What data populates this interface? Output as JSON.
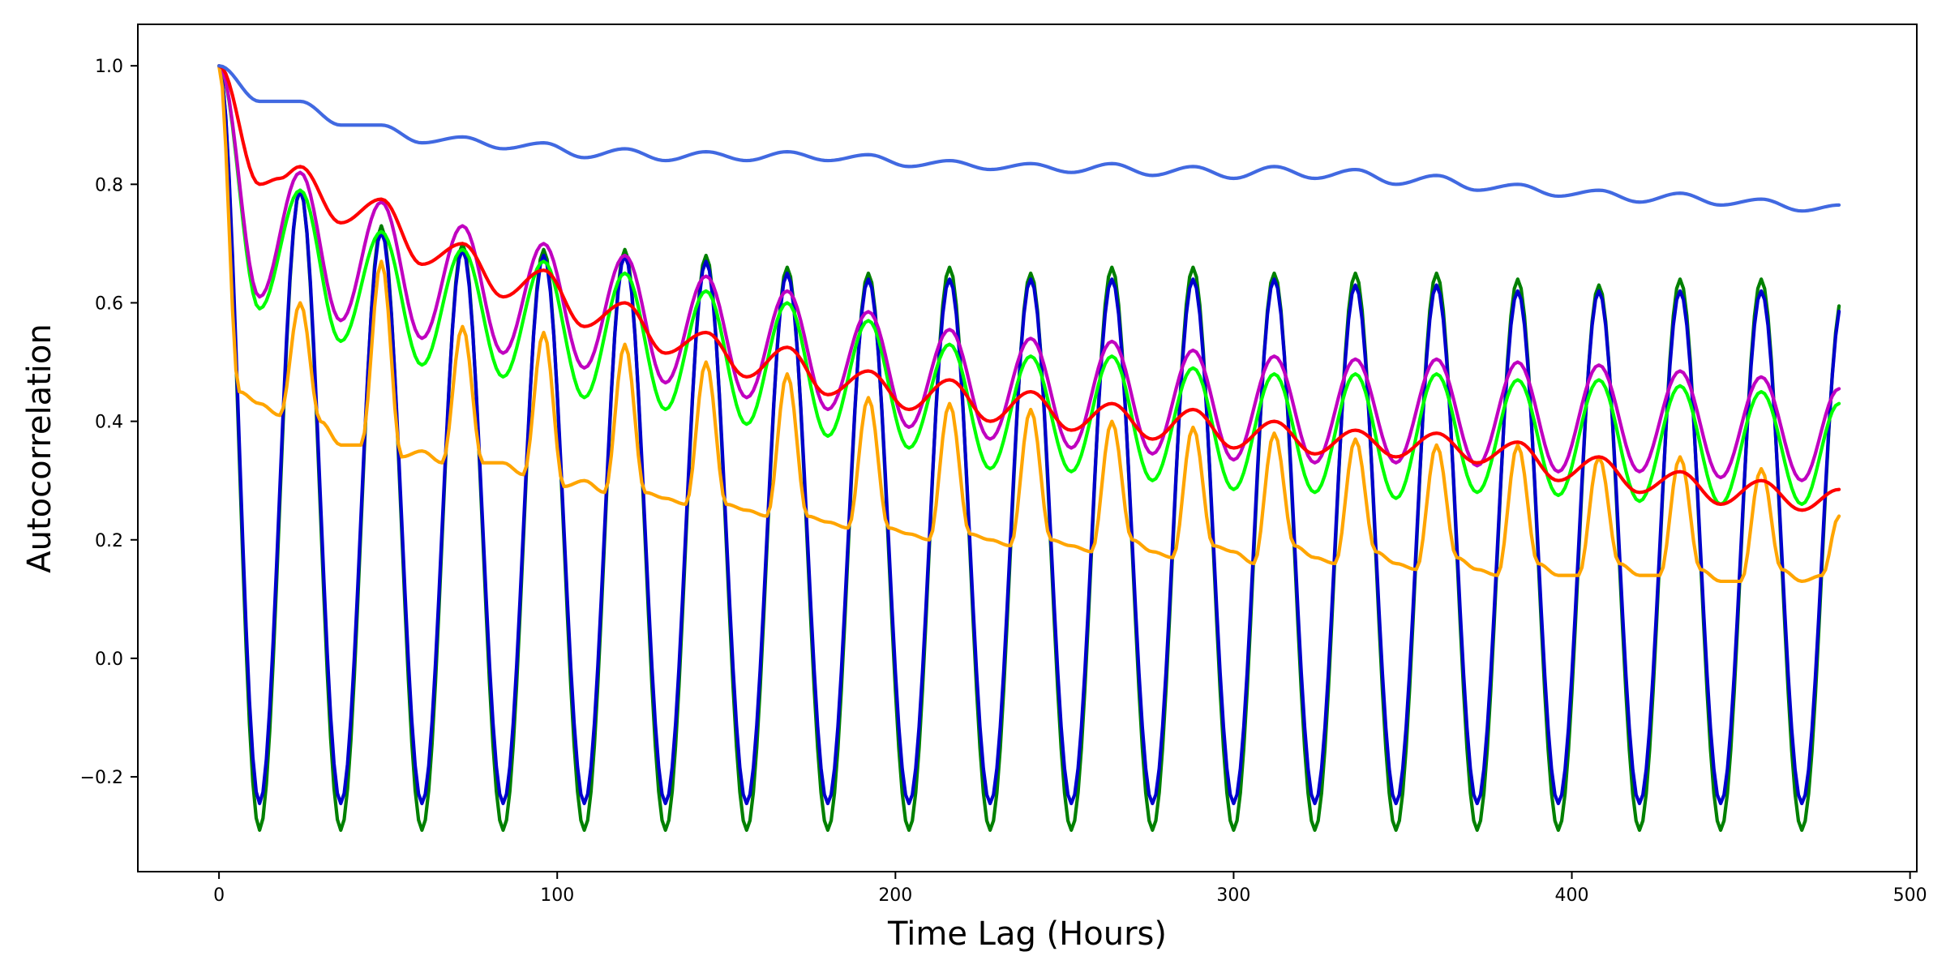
{
  "chart_data": {
    "type": "line",
    "title": "",
    "xlabel": "Time Lag (Hours)",
    "ylabel": "Autocorrelation",
    "xlim": [
      -24,
      502
    ],
    "ylim": [
      -0.36,
      1.07
    ],
    "xticks": [
      0,
      100,
      200,
      300,
      400,
      500
    ],
    "xtick_labels": [
      "0",
      "100",
      "200",
      "300",
      "400",
      "500"
    ],
    "yticks": [
      -0.2,
      0.0,
      0.2,
      0.4,
      0.6,
      0.8,
      1.0
    ],
    "ytick_labels": [
      "−0.2",
      "0.0",
      "0.2",
      "0.4",
      "0.6",
      "0.8",
      "1.0"
    ],
    "grid": false,
    "legend": "none",
    "x_range": [
      0,
      479
    ],
    "x_step": 1,
    "series": [
      {
        "name": "series-green",
        "color": "#008000",
        "period": 24,
        "keypoints": [
          [
            0,
            1.0
          ],
          [
            12,
            -0.29
          ],
          [
            24,
            0.79
          ],
          [
            36,
            -0.29
          ],
          [
            48,
            0.73
          ],
          [
            60,
            -0.29
          ],
          [
            72,
            0.7
          ],
          [
            84,
            -0.29
          ],
          [
            96,
            0.69
          ],
          [
            108,
            -0.29
          ],
          [
            120,
            0.69
          ],
          [
            144,
            0.68
          ],
          [
            168,
            0.66
          ],
          [
            192,
            0.65
          ],
          [
            216,
            0.66
          ],
          [
            240,
            0.65
          ],
          [
            264,
            0.66
          ],
          [
            288,
            0.66
          ],
          [
            312,
            0.65
          ],
          [
            336,
            0.65
          ],
          [
            360,
            0.65
          ],
          [
            384,
            0.64
          ],
          [
            408,
            0.63
          ],
          [
            432,
            0.64
          ],
          [
            456,
            0.64
          ],
          [
            479,
            0.61
          ]
        ],
        "amp_min": -0.29
      },
      {
        "name": "series-blue",
        "color": "#0000cd",
        "period": 24,
        "keypoints": [
          [
            0,
            1.0
          ],
          [
            12,
            -0.24
          ],
          [
            24,
            0.79
          ],
          [
            36,
            -0.25
          ],
          [
            48,
            0.72
          ],
          [
            72,
            0.69
          ],
          [
            96,
            0.68
          ],
          [
            120,
            0.68
          ],
          [
            144,
            0.67
          ],
          [
            168,
            0.65
          ],
          [
            192,
            0.64
          ],
          [
            216,
            0.64
          ],
          [
            240,
            0.64
          ],
          [
            264,
            0.64
          ],
          [
            288,
            0.64
          ],
          [
            312,
            0.64
          ],
          [
            336,
            0.63
          ],
          [
            360,
            0.63
          ],
          [
            384,
            0.62
          ],
          [
            408,
            0.62
          ],
          [
            432,
            0.62
          ],
          [
            456,
            0.62
          ],
          [
            479,
            0.6
          ]
        ],
        "amp_min": -0.245
      },
      {
        "name": "series-lime",
        "color": "#00ff00",
        "period": 24,
        "keypoints": [
          [
            0,
            1.0
          ],
          [
            12,
            0.59
          ],
          [
            24,
            0.79
          ],
          [
            36,
            0.535
          ],
          [
            48,
            0.72
          ],
          [
            60,
            0.495
          ],
          [
            72,
            0.69
          ],
          [
            84,
            0.475
          ],
          [
            96,
            0.67
          ],
          [
            108,
            0.44
          ],
          [
            120,
            0.65
          ],
          [
            132,
            0.42
          ],
          [
            144,
            0.62
          ],
          [
            156,
            0.395
          ],
          [
            168,
            0.6
          ],
          [
            180,
            0.375
          ],
          [
            192,
            0.57
          ],
          [
            204,
            0.355
          ],
          [
            216,
            0.53
          ],
          [
            228,
            0.32
          ],
          [
            240,
            0.51
          ],
          [
            252,
            0.315
          ],
          [
            264,
            0.51
          ],
          [
            276,
            0.3
          ],
          [
            288,
            0.49
          ],
          [
            300,
            0.285
          ],
          [
            312,
            0.48
          ],
          [
            324,
            0.28
          ],
          [
            336,
            0.48
          ],
          [
            348,
            0.27
          ],
          [
            360,
            0.48
          ],
          [
            372,
            0.28
          ],
          [
            384,
            0.47
          ],
          [
            396,
            0.275
          ],
          [
            408,
            0.47
          ],
          [
            420,
            0.265
          ],
          [
            432,
            0.46
          ],
          [
            444,
            0.26
          ],
          [
            456,
            0.45
          ],
          [
            468,
            0.26
          ],
          [
            479,
            0.43
          ]
        ]
      },
      {
        "name": "series-magenta",
        "color": "#c000c0",
        "period": 24,
        "keypoints": [
          [
            0,
            1.0
          ],
          [
            12,
            0.61
          ],
          [
            24,
            0.82
          ],
          [
            36,
            0.57
          ],
          [
            48,
            0.77
          ],
          [
            60,
            0.54
          ],
          [
            72,
            0.73
          ],
          [
            84,
            0.515
          ],
          [
            96,
            0.7
          ],
          [
            108,
            0.49
          ],
          [
            120,
            0.68
          ],
          [
            132,
            0.465
          ],
          [
            144,
            0.645
          ],
          [
            156,
            0.44
          ],
          [
            168,
            0.62
          ],
          [
            180,
            0.42
          ],
          [
            192,
            0.585
          ],
          [
            204,
            0.39
          ],
          [
            216,
            0.555
          ],
          [
            228,
            0.37
          ],
          [
            240,
            0.54
          ],
          [
            252,
            0.355
          ],
          [
            264,
            0.535
          ],
          [
            276,
            0.345
          ],
          [
            288,
            0.52
          ],
          [
            300,
            0.335
          ],
          [
            312,
            0.51
          ],
          [
            324,
            0.33
          ],
          [
            336,
            0.505
          ],
          [
            348,
            0.33
          ],
          [
            360,
            0.505
          ],
          [
            372,
            0.325
          ],
          [
            384,
            0.5
          ],
          [
            396,
            0.315
          ],
          [
            408,
            0.495
          ],
          [
            420,
            0.315
          ],
          [
            432,
            0.485
          ],
          [
            444,
            0.305
          ],
          [
            456,
            0.475
          ],
          [
            468,
            0.3
          ],
          [
            479,
            0.455
          ]
        ]
      },
      {
        "name": "series-orange",
        "color": "#ffa500",
        "period": 24,
        "keypoints": [
          [
            0,
            1.0
          ],
          [
            6,
            0.45
          ],
          [
            12,
            0.43
          ],
          [
            18,
            0.41
          ],
          [
            24,
            0.6
          ],
          [
            30,
            0.4
          ],
          [
            36,
            0.36
          ],
          [
            42,
            0.36
          ],
          [
            48,
            0.67
          ],
          [
            54,
            0.34
          ],
          [
            60,
            0.35
          ],
          [
            66,
            0.33
          ],
          [
            72,
            0.56
          ],
          [
            78,
            0.33
          ],
          [
            84,
            0.33
          ],
          [
            90,
            0.31
          ],
          [
            96,
            0.55
          ],
          [
            102,
            0.29
          ],
          [
            108,
            0.3
          ],
          [
            114,
            0.28
          ],
          [
            120,
            0.53
          ],
          [
            126,
            0.28
          ],
          [
            132,
            0.27
          ],
          [
            138,
            0.26
          ],
          [
            144,
            0.5
          ],
          [
            150,
            0.26
          ],
          [
            156,
            0.25
          ],
          [
            162,
            0.24
          ],
          [
            168,
            0.48
          ],
          [
            174,
            0.24
          ],
          [
            180,
            0.23
          ],
          [
            186,
            0.22
          ],
          [
            192,
            0.44
          ],
          [
            198,
            0.22
          ],
          [
            204,
            0.21
          ],
          [
            210,
            0.2
          ],
          [
            216,
            0.43
          ],
          [
            222,
            0.21
          ],
          [
            228,
            0.2
          ],
          [
            234,
            0.19
          ],
          [
            240,
            0.42
          ],
          [
            246,
            0.2
          ],
          [
            252,
            0.19
          ],
          [
            258,
            0.18
          ],
          [
            264,
            0.4
          ],
          [
            270,
            0.2
          ],
          [
            276,
            0.18
          ],
          [
            282,
            0.17
          ],
          [
            288,
            0.39
          ],
          [
            294,
            0.19
          ],
          [
            300,
            0.18
          ],
          [
            306,
            0.16
          ],
          [
            312,
            0.38
          ],
          [
            318,
            0.19
          ],
          [
            324,
            0.17
          ],
          [
            330,
            0.16
          ],
          [
            336,
            0.37
          ],
          [
            342,
            0.18
          ],
          [
            348,
            0.16
          ],
          [
            354,
            0.15
          ],
          [
            360,
            0.36
          ],
          [
            366,
            0.17
          ],
          [
            372,
            0.15
          ],
          [
            378,
            0.14
          ],
          [
            384,
            0.36
          ],
          [
            390,
            0.16
          ],
          [
            396,
            0.14
          ],
          [
            402,
            0.14
          ],
          [
            408,
            0.34
          ],
          [
            414,
            0.16
          ],
          [
            420,
            0.14
          ],
          [
            426,
            0.14
          ],
          [
            432,
            0.34
          ],
          [
            438,
            0.15
          ],
          [
            444,
            0.13
          ],
          [
            450,
            0.13
          ],
          [
            456,
            0.32
          ],
          [
            462,
            0.15
          ],
          [
            468,
            0.13
          ],
          [
            474,
            0.14
          ],
          [
            479,
            0.24
          ]
        ]
      },
      {
        "name": "series-red",
        "color": "#ff0000",
        "period": 24,
        "keypoints": [
          [
            0,
            1.0
          ],
          [
            12,
            0.8
          ],
          [
            18,
            0.81
          ],
          [
            24,
            0.83
          ],
          [
            36,
            0.735
          ],
          [
            48,
            0.775
          ],
          [
            60,
            0.665
          ],
          [
            72,
            0.7
          ],
          [
            84,
            0.61
          ],
          [
            96,
            0.655
          ],
          [
            108,
            0.56
          ],
          [
            120,
            0.6
          ],
          [
            132,
            0.515
          ],
          [
            144,
            0.55
          ],
          [
            156,
            0.475
          ],
          [
            168,
            0.525
          ],
          [
            180,
            0.445
          ],
          [
            192,
            0.485
          ],
          [
            204,
            0.42
          ],
          [
            216,
            0.47
          ],
          [
            228,
            0.4
          ],
          [
            240,
            0.45
          ],
          [
            252,
            0.385
          ],
          [
            264,
            0.43
          ],
          [
            276,
            0.37
          ],
          [
            288,
            0.42
          ],
          [
            300,
            0.355
          ],
          [
            312,
            0.4
          ],
          [
            324,
            0.345
          ],
          [
            336,
            0.385
          ],
          [
            348,
            0.34
          ],
          [
            360,
            0.38
          ],
          [
            372,
            0.33
          ],
          [
            384,
            0.365
          ],
          [
            396,
            0.3
          ],
          [
            408,
            0.34
          ],
          [
            420,
            0.28
          ],
          [
            432,
            0.315
          ],
          [
            444,
            0.26
          ],
          [
            456,
            0.3
          ],
          [
            468,
            0.25
          ],
          [
            479,
            0.285
          ]
        ]
      },
      {
        "name": "series-royalblue",
        "color": "#4169e1",
        "period": 24,
        "keypoints": [
          [
            0,
            1.0
          ],
          [
            12,
            0.94
          ],
          [
            24,
            0.94
          ],
          [
            36,
            0.9
          ],
          [
            48,
            0.9
          ],
          [
            60,
            0.87
          ],
          [
            72,
            0.88
          ],
          [
            84,
            0.86
          ],
          [
            96,
            0.87
          ],
          [
            108,
            0.845
          ],
          [
            120,
            0.86
          ],
          [
            132,
            0.84
          ],
          [
            144,
            0.855
          ],
          [
            156,
            0.84
          ],
          [
            168,
            0.855
          ],
          [
            180,
            0.84
          ],
          [
            192,
            0.85
          ],
          [
            204,
            0.83
          ],
          [
            216,
            0.84
          ],
          [
            228,
            0.825
          ],
          [
            240,
            0.835
          ],
          [
            252,
            0.82
          ],
          [
            264,
            0.835
          ],
          [
            276,
            0.815
          ],
          [
            288,
            0.83
          ],
          [
            300,
            0.81
          ],
          [
            312,
            0.83
          ],
          [
            324,
            0.81
          ],
          [
            336,
            0.825
          ],
          [
            348,
            0.8
          ],
          [
            360,
            0.815
          ],
          [
            372,
            0.79
          ],
          [
            384,
            0.8
          ],
          [
            396,
            0.78
          ],
          [
            408,
            0.79
          ],
          [
            420,
            0.77
          ],
          [
            432,
            0.785
          ],
          [
            444,
            0.765
          ],
          [
            456,
            0.775
          ],
          [
            468,
            0.755
          ],
          [
            479,
            0.765
          ]
        ]
      }
    ]
  }
}
